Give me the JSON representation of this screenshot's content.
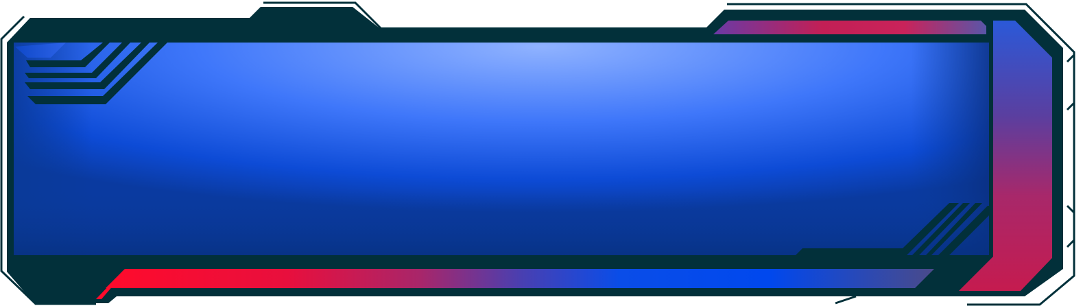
{
  "panel": {
    "colors": {
      "frame_dark": "#02303a",
      "frame_line": "#02303a",
      "background": "#ffffff",
      "panel_light": "#8aaeff",
      "panel_mid": "#3a73f7",
      "panel_deep": "#0a3ea8",
      "accent_red": "#ff0b2c",
      "accent_magenta": "#c01d55",
      "accent_purple": "#6a3a9c",
      "accent_blue": "#0048ee"
    },
    "decorations": {
      "top_left_stripes": "diagonal-stripes",
      "bottom_right_stripes": "diagonal-stripes",
      "top_right_bar": "gradient-bar",
      "bottom_bar": "gradient-bar",
      "right_pillar": "gradient-pillar"
    }
  }
}
